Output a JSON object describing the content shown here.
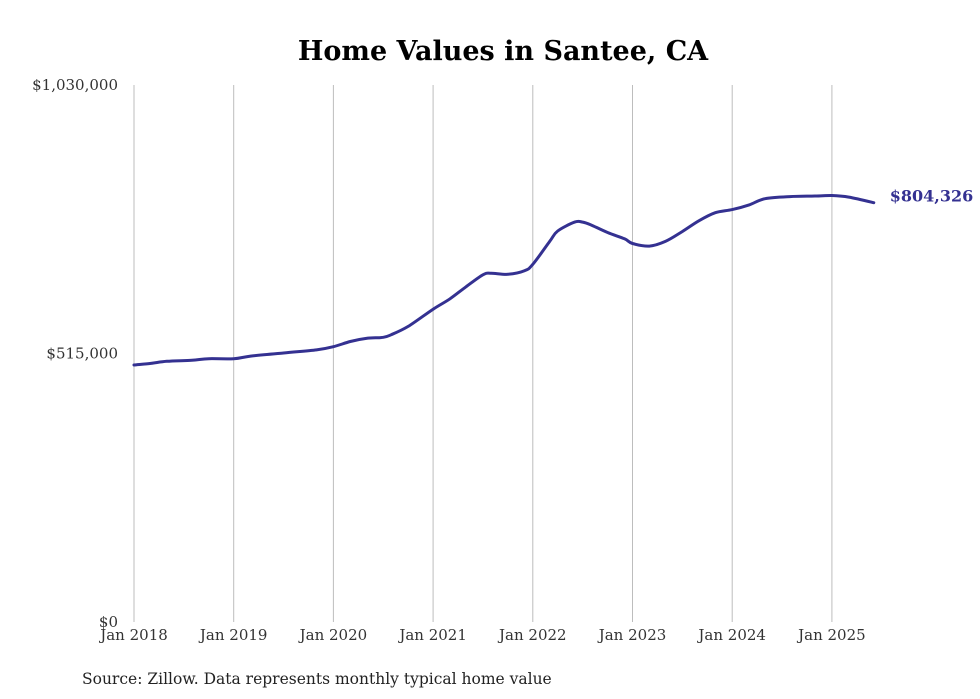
{
  "chart_data": {
    "type": "line",
    "title": "Home Values in Santee, CA",
    "source": "Source: Zillow. Data represents monthly typical home value",
    "ylim": [
      0,
      1030000
    ],
    "y_ticks": [
      {
        "value": 0,
        "label": "$0"
      },
      {
        "value": 515000,
        "label": "$515,000"
      },
      {
        "value": 1030000,
        "label": "$1,030,000"
      }
    ],
    "x_ticks": [
      {
        "value": 2018,
        "label": "Jan 2018"
      },
      {
        "value": 2019,
        "label": "Jan 2019"
      },
      {
        "value": 2020,
        "label": "Jan 2020"
      },
      {
        "value": 2021,
        "label": "Jan 2021"
      },
      {
        "value": 2022,
        "label": "Jan 2022"
      },
      {
        "value": 2023,
        "label": "Jan 2023"
      },
      {
        "value": 2024,
        "label": "Jan 2024"
      },
      {
        "value": 2025,
        "label": "Jan 2025"
      }
    ],
    "xlim": [
      2018,
      2025.42
    ],
    "end_label": "$804,326",
    "series": [
      {
        "name": "Typical home value",
        "color": "#343191",
        "x": [
          2018.0,
          2018.17,
          2018.33,
          2018.58,
          2018.75,
          2019.0,
          2019.17,
          2019.5,
          2019.83,
          2020.0,
          2020.17,
          2020.33,
          2020.5,
          2020.58,
          2020.75,
          2021.0,
          2021.17,
          2021.33,
          2021.5,
          2021.58,
          2021.75,
          2021.92,
          2022.0,
          2022.17,
          2022.25,
          2022.42,
          2022.5,
          2022.58,
          2022.75,
          2022.92,
          2023.0,
          2023.17,
          2023.33,
          2023.5,
          2023.67,
          2023.83,
          2024.0,
          2024.17,
          2024.33,
          2024.58,
          2024.83,
          2025.0,
          2025.17,
          2025.42
        ],
        "values": [
          493000,
          496000,
          500000,
          502000,
          505000,
          505000,
          510000,
          516000,
          522000,
          528000,
          538000,
          544000,
          546000,
          551000,
          567000,
          600000,
          620000,
          643000,
          666000,
          669000,
          667000,
          674000,
          686000,
          730000,
          750000,
          767000,
          767000,
          762000,
          747000,
          735000,
          726000,
          721000,
          730000,
          749000,
          770000,
          785000,
          791000,
          800000,
          812000,
          816000,
          817000,
          818000,
          815000,
          804326
        ]
      }
    ]
  }
}
